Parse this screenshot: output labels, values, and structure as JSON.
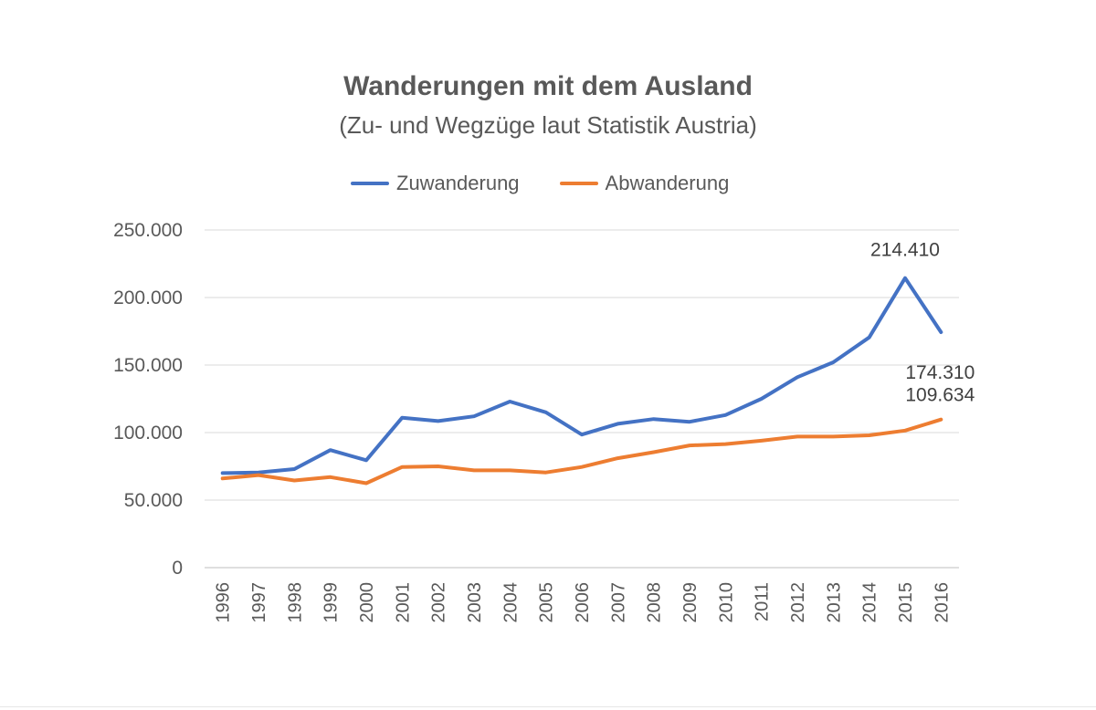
{
  "chart_data": {
    "type": "line",
    "title": "Wanderungen mit dem Ausland",
    "subtitle": "(Zu- und Wegzüge laut Statistik Austria)",
    "xlabel": "",
    "ylabel": "",
    "ylim": [
      0,
      250000
    ],
    "yticks": [
      0,
      50000,
      100000,
      150000,
      200000,
      250000
    ],
    "ytick_labels": [
      "0",
      "50.000",
      "100.000",
      "150.000",
      "200.000",
      "250.000"
    ],
    "grid": true,
    "legend_position": "top",
    "categories": [
      "1996",
      "1997",
      "1998",
      "1999",
      "2000",
      "2001",
      "2002",
      "2003",
      "2004",
      "2005",
      "2006",
      "2007",
      "2008",
      "2009",
      "2010",
      "2011",
      "2012",
      "2013",
      "2014",
      "2015",
      "2016"
    ],
    "series": [
      {
        "name": "Zuwanderung",
        "color": "#4472c4",
        "values": [
          70000,
          70500,
          73000,
          87000,
          79500,
          111000,
          108500,
          112000,
          123000,
          115000,
          98500,
          106500,
          110000,
          108000,
          113000,
          125000,
          141000,
          152000,
          170500,
          214410,
          174310
        ]
      },
      {
        "name": "Abwanderung",
        "color": "#ed7d31",
        "values": [
          66000,
          68500,
          64500,
          67000,
          62500,
          74500,
          75000,
          72000,
          72000,
          70500,
          74500,
          81000,
          85500,
          90500,
          91500,
          94000,
          97000,
          97000,
          98000,
          101500,
          109634
        ]
      }
    ],
    "annotations": [
      {
        "text": "214.410",
        "series": 0,
        "index": 19,
        "anchor": "above"
      },
      {
        "text": "174.310",
        "series": 0,
        "index": 20,
        "anchor": "below"
      },
      {
        "text": "109.634",
        "series": 1,
        "index": 20,
        "anchor": "above"
      }
    ]
  }
}
